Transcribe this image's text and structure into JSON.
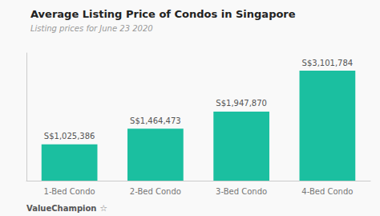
{
  "chart_data": {
    "type": "bar",
    "title": "Average Listing Price of Condos in Singapore",
    "subtitle": "Listing prices for June 23 2020",
    "annotations": [
      "ValueChampion",
      "☆"
    ],
    "categories": [
      "1-Bed Condo",
      "2-Bed Condo",
      "3-Bed Condo",
      "4-Bed Condo"
    ],
    "values": [
      1025386,
      1464473,
      1947870,
      3101784
    ],
    "value_labels": [
      "S$1,025,386",
      "S$1,464,473",
      "S$1,947,870",
      "S$3,101,784"
    ],
    "data_labels": true,
    "color": "#1bbfa0",
    "ylim": [
      0,
      3600000
    ],
    "grid": false,
    "tick_labels": "x"
  }
}
